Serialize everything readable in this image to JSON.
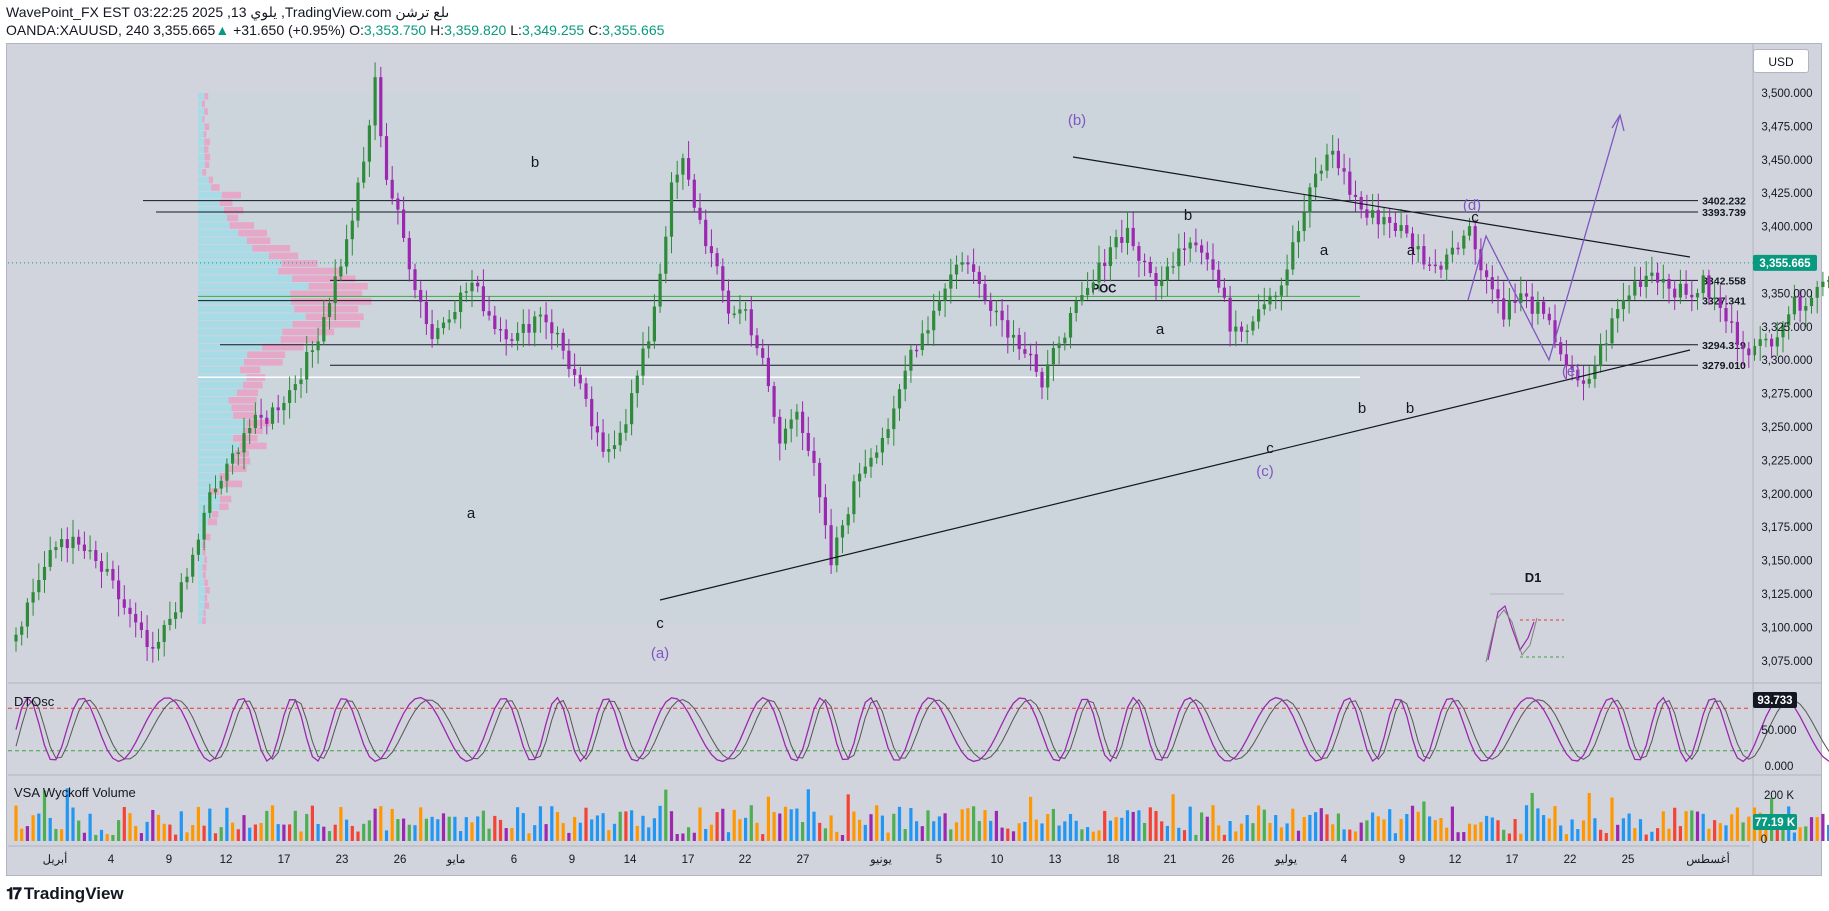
{
  "header": {
    "line1": "WavePoint_FX EST 03:22:25 2025 ,13 يلوي ,TradingView.com ىلع ترشن",
    "symbol": "OANDA:XAUUSD, 240",
    "price": "3,355.665",
    "change": "+31.650 (+0.95%)",
    "o_label": "O:",
    "o_val": "3,353.750",
    "h_label": "H:",
    "h_val": "3,359.820",
    "l_label": "L:",
    "l_val": "3,349.255",
    "c_label": "C:",
    "c_val": "3,355.665"
  },
  "currency_button": "USD",
  "brand": "TradingView",
  "colors": {
    "bull": "#2e8b3a",
    "bear": "#9c27b0",
    "wave": "#7e57c2",
    "price_badge": "#089981",
    "poc": "#4caf50"
  },
  "chart_data": {
    "type": "candlestick",
    "symbol": "OANDA:XAUUSD",
    "timeframe": "240",
    "ylim": [
      3050,
      3510
    ],
    "y_ticks": [
      "3,500.000",
      "3,475.000",
      "3,450.000",
      "3,425.000",
      "3,400.000",
      "3,375.000",
      "3,350.000",
      "3,325.000",
      "3,300.000",
      "3,275.000",
      "3,250.000",
      "3,225.000",
      "3,200.000",
      "3,175.000",
      "3,150.000",
      "3,125.000",
      "3,100.000",
      "3,075.000"
    ],
    "x_ticks": [
      "أبريل",
      "4",
      "9",
      "12",
      "17",
      "23",
      "26",
      "مايو",
      "6",
      "9",
      "14",
      "17",
      "22",
      "27",
      "يونيو",
      "5",
      "10",
      "13",
      "18",
      "21",
      "26",
      "يوليو",
      "4",
      "9",
      "12",
      "17",
      "22",
      "25",
      "أغسطس"
    ],
    "current_price": "3,355.665",
    "price_levels": [
      {
        "value": 3402.232,
        "label": "3402.232"
      },
      {
        "value": 3393.739,
        "label": "3393.739"
      },
      {
        "value": 3342.558,
        "label": "3342.558"
      },
      {
        "value": 3327.341,
        "label": "3327.341"
      },
      {
        "value": 3294.319,
        "label": "3294.319"
      },
      {
        "value": 3279.01,
        "label": "3279.010"
      }
    ],
    "poc_label": "POC",
    "wave_labels": {
      "primary": [
        "(a)",
        "(b)",
        "(c)",
        "(d)",
        "(e)"
      ],
      "minor": [
        "a",
        "b",
        "c",
        "a",
        "b",
        "c",
        "a",
        "b",
        "c",
        "a",
        "b"
      ]
    },
    "inset_label": "D1",
    "close_path": [
      [
        0,
        3080
      ],
      [
        4,
        3120
      ],
      [
        8,
        3150
      ],
      [
        12,
        3140
      ],
      [
        16,
        3120
      ],
      [
        20,
        3090
      ],
      [
        24,
        3060
      ],
      [
        30,
        3120
      ],
      [
        34,
        3180
      ],
      [
        37,
        3200
      ],
      [
        40,
        3230
      ],
      [
        44,
        3240
      ],
      [
        48,
        3260
      ],
      [
        52,
        3290
      ],
      [
        55,
        3330
      ],
      [
        58,
        3370
      ],
      [
        61,
        3430
      ],
      [
        63,
        3490
      ],
      [
        65,
        3420
      ],
      [
        67,
        3390
      ],
      [
        70,
        3340
      ],
      [
        73,
        3300
      ],
      [
        76,
        3320
      ],
      [
        80,
        3340
      ],
      [
        84,
        3310
      ],
      [
        88,
        3300
      ],
      [
        92,
        3320
      ],
      [
        95,
        3300
      ],
      [
        99,
        3260
      ],
      [
        103,
        3210
      ],
      [
        107,
        3240
      ],
      [
        111,
        3300
      ],
      [
        113,
        3350
      ],
      [
        115,
        3410
      ],
      [
        117,
        3430
      ],
      [
        119,
        3400
      ],
      [
        122,
        3360
      ],
      [
        125,
        3320
      ],
      [
        128,
        3320
      ],
      [
        131,
        3280
      ],
      [
        134,
        3220
      ],
      [
        137,
        3250
      ],
      [
        140,
        3200
      ],
      [
        143,
        3130
      ],
      [
        145,
        3160
      ],
      [
        148,
        3200
      ],
      [
        151,
        3220
      ],
      [
        154,
        3240
      ],
      [
        157,
        3290
      ],
      [
        160,
        3310
      ],
      [
        163,
        3340
      ],
      [
        166,
        3360
      ],
      [
        169,
        3340
      ],
      [
        172,
        3320
      ],
      [
        175,
        3300
      ],
      [
        178,
        3290
      ],
      [
        180,
        3260
      ],
      [
        183,
        3300
      ],
      [
        186,
        3320
      ],
      [
        189,
        3340
      ],
      [
        192,
        3370
      ],
      [
        195,
        3380
      ],
      [
        198,
        3350
      ],
      [
        201,
        3340
      ],
      [
        204,
        3370
      ],
      [
        207,
        3375
      ],
      [
        210,
        3350
      ],
      [
        213,
        3310
      ],
      [
        216,
        3310
      ],
      [
        219,
        3330
      ],
      [
        222,
        3340
      ],
      [
        225,
        3380
      ],
      [
        228,
        3420
      ],
      [
        231,
        3440
      ],
      [
        234,
        3410
      ],
      [
        237,
        3390
      ],
      [
        240,
        3390
      ],
      [
        243,
        3380
      ],
      [
        246,
        3365
      ],
      [
        249,
        3350
      ],
      [
        252,
        3370
      ],
      [
        255,
        3380
      ],
      [
        258,
        3345
      ],
      [
        261,
        3320
      ],
      [
        264,
        3330
      ],
      [
        267,
        3320
      ],
      [
        270,
        3300
      ],
      [
        273,
        3270
      ],
      [
        275,
        3260
      ],
      [
        278,
        3290
      ],
      [
        281,
        3320
      ],
      [
        284,
        3340
      ],
      [
        287,
        3350
      ],
      [
        290,
        3340
      ],
      [
        293,
        3330
      ],
      [
        296,
        3340
      ],
      [
        299,
        3320
      ],
      [
        302,
        3300
      ],
      [
        305,
        3290
      ],
      [
        308,
        3300
      ],
      [
        311,
        3320
      ],
      [
        314,
        3330
      ],
      [
        317,
        3340
      ],
      [
        319,
        3356
      ]
    ],
    "oscillator": {
      "name": "DTOsc",
      "value": "93.733",
      "y_ticks": [
        "50.000",
        "0.000"
      ],
      "upper": 80,
      "lower": 20
    },
    "volume": {
      "name": "VSA Wyckoff Volume",
      "value": "77.19 K",
      "y_ticks": [
        "200 K",
        "0"
      ]
    }
  }
}
